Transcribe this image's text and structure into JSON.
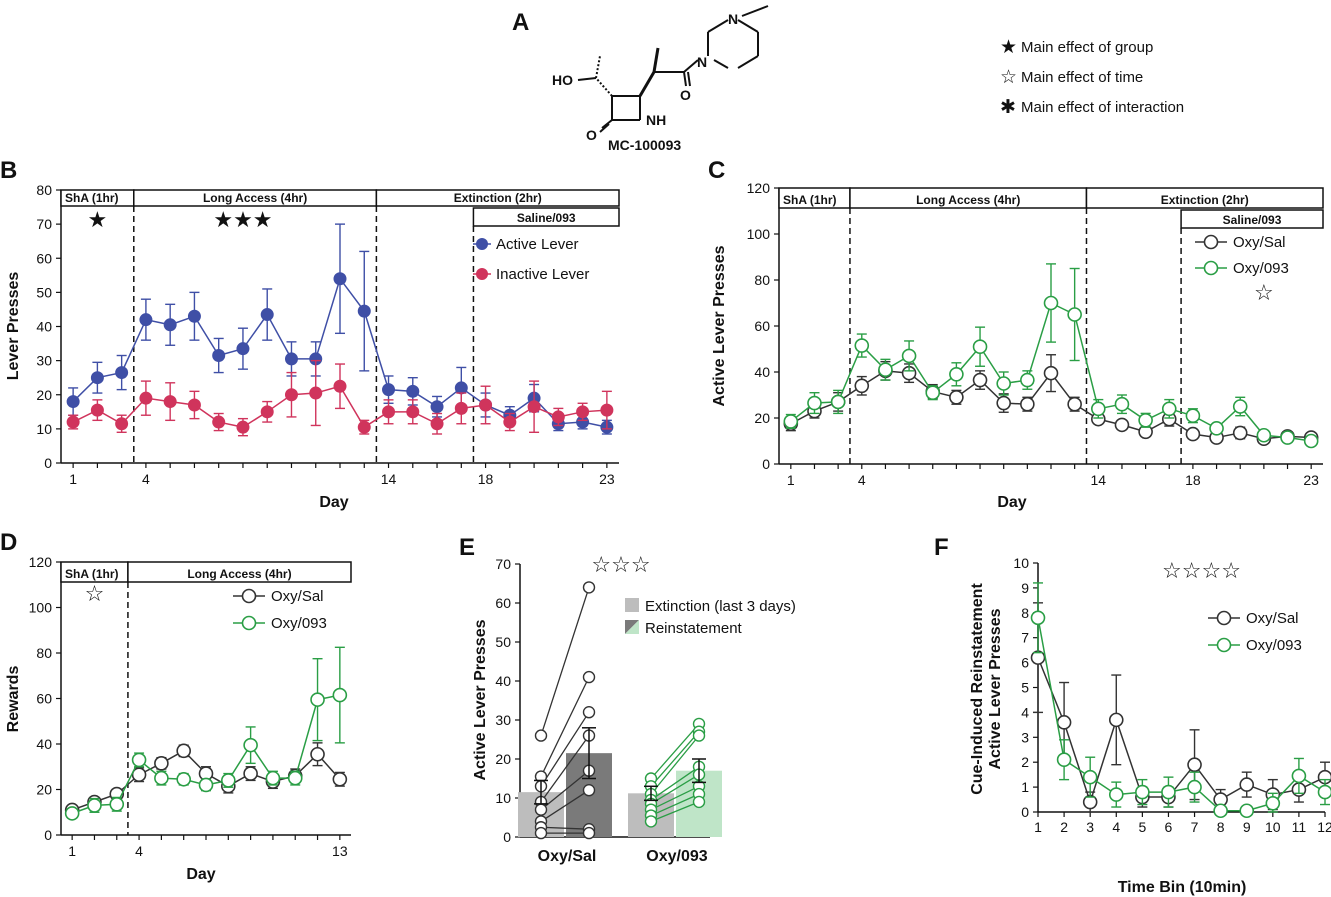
{
  "figure": {
    "colors": {
      "blue": "#3f4fa6",
      "pink": "#d0345c",
      "dark": "#333333",
      "green": "#2a9e45",
      "lightgray": "#bdbdbd",
      "darkgray": "#7a7a7a",
      "lightgreen": "#bfe5c8"
    },
    "panel_a": {
      "letter": "A",
      "compound_name": "MC-100093",
      "atom_labels": {
        "ho": "HO",
        "nh": "NH",
        "n_top": "N",
        "n_mid": "N",
        "o_amide": "O",
        "o_lactam": "O"
      },
      "legend": [
        {
          "icon": "filled-star-icon",
          "symbol": "★",
          "label": "Main effect of group"
        },
        {
          "icon": "open-star-icon",
          "symbol": "☆",
          "label": "Main effect of time"
        },
        {
          "icon": "asterisk-icon",
          "symbol": "✱",
          "label": "Main effect of interaction"
        }
      ]
    }
  },
  "chart_data": [
    {
      "id": "B",
      "letter": "B",
      "type": "line",
      "xlabel": "Day",
      "ylabel": "Lever Presses",
      "xlim": [
        0.5,
        23.5
      ],
      "ylim": [
        0,
        80
      ],
      "yticks": [
        0,
        10,
        20,
        30,
        40,
        50,
        60,
        70,
        80
      ],
      "xtick_labels": [
        "1",
        "4",
        "14",
        "18",
        "23"
      ],
      "phases": [
        {
          "label": "ShA (1hr)",
          "from": 0.5,
          "to": 3.5,
          "row": 0
        },
        {
          "label": "Long Access (4hr)",
          "from": 3.5,
          "to": 13.5,
          "row": 0
        },
        {
          "label": "Extinction (2hr)",
          "from": 13.5,
          "to": 23.5,
          "row": 0
        },
        {
          "label": "Saline/093",
          "from": 17.5,
          "to": 23.5,
          "row": 1
        }
      ],
      "significance": [
        {
          "marks": "★",
          "x": 2
        },
        {
          "marks": "★★★",
          "x": 8
        }
      ],
      "series": [
        {
          "name": "Active Lever",
          "color": "#3f4fa6",
          "style": "filled",
          "x": [
            1,
            2,
            3,
            4,
            5,
            6,
            7,
            8,
            9,
            10,
            11,
            12,
            13,
            14,
            15,
            16,
            17,
            18,
            19,
            20,
            21,
            22,
            23
          ],
          "values": [
            18,
            25,
            26.5,
            42,
            40.5,
            43,
            31.5,
            33.5,
            43.5,
            30.5,
            30.5,
            54,
            44.5,
            21.5,
            21,
            16.5,
            22,
            17,
            14,
            19,
            11.5,
            12,
            10.5
          ],
          "err": [
            4,
            4.5,
            5,
            6,
            6,
            7,
            5,
            6,
            7.5,
            5,
            5,
            16,
            17.5,
            4,
            4,
            3,
            6,
            3.5,
            2.5,
            4,
            2,
            2,
            2
          ]
        },
        {
          "name": "Inactive Lever",
          "color": "#d0345c",
          "style": "filled",
          "x": [
            1,
            2,
            3,
            4,
            5,
            6,
            7,
            8,
            9,
            10,
            11,
            12,
            13,
            14,
            15,
            16,
            17,
            18,
            19,
            20,
            21,
            22,
            23
          ],
          "values": [
            12,
            15.5,
            11.5,
            19,
            18,
            17,
            12,
            10.5,
            15,
            20,
            20.5,
            22.5,
            10.5,
            15,
            15,
            11.5,
            16,
            17,
            12,
            16.5,
            13.5,
            15,
            15.5
          ],
          "err": [
            2,
            3,
            2.5,
            5,
            5.5,
            4,
            2.5,
            2.5,
            3,
            6.5,
            9.5,
            6.5,
            2,
            3.5,
            3.5,
            3,
            4.5,
            5.5,
            2.5,
            7.5,
            2.5,
            2.5,
            5.5
          ]
        }
      ]
    },
    {
      "id": "C",
      "letter": "C",
      "type": "line",
      "xlabel": "Day",
      "ylabel": "Active Lever Presses",
      "xlim": [
        0.5,
        23.5
      ],
      "ylim": [
        0,
        120
      ],
      "yticks": [
        0,
        20,
        40,
        60,
        80,
        100,
        120
      ],
      "xtick_labels": [
        "1",
        "4",
        "14",
        "18",
        "23"
      ],
      "phases": [
        {
          "label": "ShA (1hr)",
          "from": 0.5,
          "to": 3.5,
          "row": 0
        },
        {
          "label": "Long Access (4hr)",
          "from": 3.5,
          "to": 13.5,
          "row": 0
        },
        {
          "label": "Extinction (2hr)",
          "from": 13.5,
          "to": 23.5,
          "row": 0
        },
        {
          "label": "Saline/093",
          "from": 17.5,
          "to": 23.5,
          "row": 1
        }
      ],
      "significance": [
        {
          "marks": "☆",
          "x": 21
        }
      ],
      "series": [
        {
          "name": "Oxy/Sal",
          "color": "#333333",
          "style": "open",
          "x": [
            1,
            2,
            3,
            4,
            5,
            6,
            7,
            8,
            9,
            10,
            11,
            12,
            13,
            14,
            15,
            16,
            17,
            18,
            19,
            20,
            21,
            22,
            23
          ],
          "values": [
            17.5,
            23,
            27,
            34,
            40.5,
            39.5,
            31.5,
            29,
            36.5,
            26.5,
            26,
            39.5,
            26,
            19.5,
            17,
            14,
            19.5,
            13,
            11.5,
            13.5,
            11,
            12,
            11.5
          ],
          "err": [
            3,
            3,
            4,
            4,
            4,
            4,
            3,
            3,
            4,
            4,
            3,
            8,
            3,
            2,
            2,
            2,
            3,
            2,
            2,
            2.5,
            2,
            1.5,
            1.5
          ]
        },
        {
          "name": "Oxy/093",
          "color": "#2a9e45",
          "style": "open",
          "x": [
            1,
            2,
            3,
            4,
            5,
            6,
            7,
            8,
            9,
            10,
            11,
            12,
            13,
            14,
            15,
            16,
            17,
            18,
            19,
            20,
            21,
            22,
            23
          ],
          "values": [
            18.5,
            26.5,
            27,
            51.5,
            41,
            47,
            31,
            39,
            51,
            35,
            36.5,
            70,
            65,
            24,
            26,
            19,
            24,
            21,
            15.5,
            25,
            12.5,
            11.5,
            10
          ],
          "err": [
            3,
            4.5,
            5,
            5,
            4.5,
            6.5,
            3,
            5,
            8.5,
            5,
            4,
            17,
            20,
            4,
            4,
            3,
            4,
            3,
            2,
            4,
            2,
            2,
            2
          ]
        }
      ]
    },
    {
      "id": "D",
      "letter": "D",
      "type": "line",
      "xlabel": "Day",
      "ylabel": "Rewards",
      "xlim": [
        0.5,
        13.5
      ],
      "ylim": [
        0,
        120
      ],
      "yticks": [
        0,
        20,
        40,
        60,
        80,
        100,
        120
      ],
      "xtick_labels": [
        "1",
        "4",
        "13"
      ],
      "phases": [
        {
          "label": "ShA (1hr)",
          "from": 0.5,
          "to": 3.5,
          "row": 0
        },
        {
          "label": "Long Access (4hr)",
          "from": 3.5,
          "to": 13.5,
          "row": 0
        }
      ],
      "significance": [
        {
          "marks": "☆",
          "x": 2
        }
      ],
      "series": [
        {
          "name": "Oxy/Sal",
          "color": "#333333",
          "style": "open",
          "x": [
            1,
            2,
            3,
            4,
            5,
            6,
            7,
            8,
            9,
            10,
            11,
            12,
            13
          ],
          "values": [
            11,
            14.5,
            18,
            26.5,
            31.5,
            37,
            27,
            21.5,
            27,
            23.5,
            26,
            35.5,
            24.5
          ],
          "err": [
            2,
            2,
            2,
            3,
            2.5,
            2.5,
            3,
            3,
            3,
            3,
            3,
            5,
            3
          ]
        },
        {
          "name": "Oxy/093",
          "color": "#2a9e45",
          "style": "open",
          "x": [
            1,
            2,
            3,
            4,
            5,
            6,
            7,
            8,
            9,
            10,
            11,
            12,
            13
          ],
          "values": [
            9.5,
            13,
            13.5,
            33,
            25,
            24.5,
            22,
            24,
            39.5,
            25,
            25,
            59.5,
            61.5
          ],
          "err": [
            2,
            3,
            3,
            3,
            3,
            2.5,
            2.5,
            3,
            8,
            3,
            3,
            18,
            21
          ]
        }
      ]
    },
    {
      "id": "E",
      "letter": "E",
      "type": "bar",
      "xlabel": "",
      "ylabel": "Active Lever Presses",
      "ylim": [
        0,
        70
      ],
      "yticks": [
        0,
        10,
        20,
        30,
        40,
        50,
        60,
        70
      ],
      "groups": [
        "Oxy/Sal",
        "Oxy/093"
      ],
      "significance": [
        {
          "marks": "☆☆☆"
        }
      ],
      "legend": [
        {
          "label": "Extinction (last 3 days)"
        },
        {
          "label": "Reinstatement"
        }
      ],
      "bars": [
        {
          "group": "Oxy/Sal",
          "condition": "Extinction (last 3 days)",
          "value": 11.5,
          "err": 3,
          "color": "#bdbdbd"
        },
        {
          "group": "Oxy/Sal",
          "condition": "Reinstatement",
          "value": 21.5,
          "err": 6.5,
          "color": "#7a7a7a"
        },
        {
          "group": "Oxy/093",
          "condition": "Extinction (last 3 days)",
          "value": 11.2,
          "err": 1.8,
          "color": "#bdbdbd"
        },
        {
          "group": "Oxy/093",
          "condition": "Reinstatement",
          "value": 17,
          "err": 3,
          "color": "#bfe5c8"
        }
      ],
      "subjects": [
        {
          "group": "Oxy/Sal",
          "color": "#333333",
          "pairs": [
            [
              26,
              64
            ],
            [
              15.5,
              41
            ],
            [
              13,
              32
            ],
            [
              9,
              26
            ],
            [
              7,
              17
            ],
            [
              4,
              12
            ],
            [
              2.5,
              2
            ],
            [
              1,
              1
            ]
          ]
        },
        {
          "group": "Oxy/093",
          "color": "#2a9e45",
          "pairs": [
            [
              15,
              29
            ],
            [
              13,
              27
            ],
            [
              11,
              26
            ],
            [
              9.5,
              18
            ],
            [
              8.5,
              16
            ],
            [
              7,
              13
            ],
            [
              5.5,
              11
            ],
            [
              4,
              9
            ]
          ]
        }
      ]
    },
    {
      "id": "F",
      "letter": "F",
      "type": "line",
      "xlabel": "Time Bin (10min)",
      "ylabel_lines": [
        "Cue-Induced Reinstatement",
        "Active Lever Presses"
      ],
      "xlim": [
        1,
        12
      ],
      "ylim": [
        0,
        10
      ],
      "yticks": [
        0,
        1,
        2,
        3,
        4,
        5,
        6,
        7,
        8,
        9,
        10
      ],
      "xtick_labels": [
        "1",
        "2",
        "3",
        "4",
        "5",
        "6",
        "7",
        "8",
        "9",
        "10",
        "11",
        "12"
      ],
      "significance": [
        {
          "marks": "☆☆☆☆"
        }
      ],
      "series": [
        {
          "name": "Oxy/Sal",
          "color": "#333333",
          "style": "open",
          "x": [
            1,
            2,
            3,
            4,
            5,
            6,
            7,
            8,
            9,
            10,
            11,
            12
          ],
          "values": [
            6.2,
            3.6,
            0.4,
            3.7,
            0.6,
            0.6,
            1.9,
            0.5,
            1.1,
            0.7,
            0.9,
            1.4
          ],
          "err": [
            2.2,
            1.6,
            0.4,
            1.8,
            0.4,
            0.4,
            1.4,
            0.4,
            0.5,
            0.6,
            0.5,
            0.6
          ]
        },
        {
          "name": "Oxy/093",
          "color": "#2a9e45",
          "style": "open",
          "x": [
            1,
            2,
            3,
            4,
            5,
            6,
            7,
            8,
            9,
            10,
            11,
            12
          ],
          "values": [
            7.8,
            2.1,
            1.4,
            0.7,
            0.8,
            0.8,
            1.0,
            0.05,
            0.05,
            0.35,
            1.45,
            0.8
          ],
          "err": [
            1.4,
            0.8,
            0.8,
            0.5,
            0.5,
            0.6,
            0.6,
            0.1,
            0.1,
            0.4,
            0.7,
            0.5
          ]
        }
      ]
    }
  ]
}
